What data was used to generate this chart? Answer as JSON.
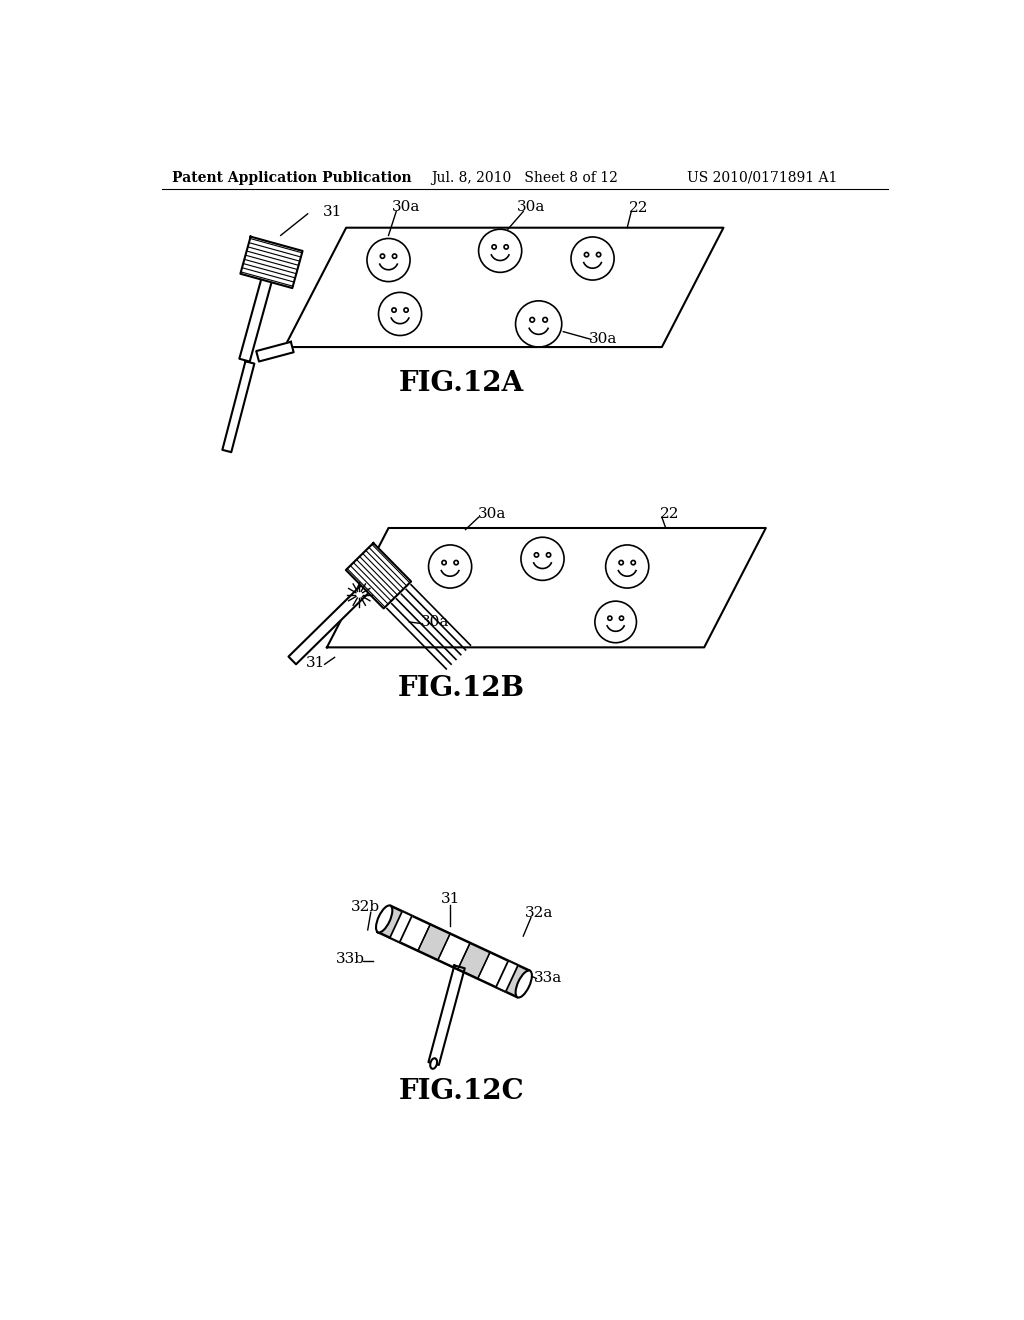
{
  "header_left": "Patent Application Publication",
  "header_mid": "Jul. 8, 2010   Sheet 8 of 12",
  "header_right": "US 2010/0171891 A1",
  "fig12a_label": "FIG.12A",
  "fig12b_label": "FIG.12B",
  "fig12c_label": "FIG.12C",
  "bg_color": "#ffffff",
  "line_color": "#000000",
  "font_size_header": 10,
  "font_size_label": 20,
  "font_size_ref": 11
}
